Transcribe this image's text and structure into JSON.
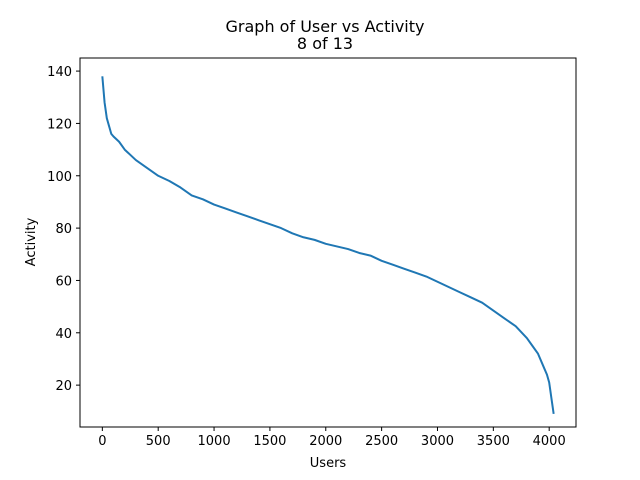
{
  "chart_data": {
    "type": "line",
    "title": "Graph of User vs Activity",
    "subtitle": "8 of 13",
    "xlabel": "Users",
    "ylabel": "Activity",
    "xlim": [
      -200,
      4240
    ],
    "ylim": [
      4,
      145
    ],
    "xticks": [
      0,
      500,
      1000,
      1500,
      2000,
      2500,
      3000,
      3500,
      4000
    ],
    "yticks": [
      20,
      40,
      60,
      80,
      100,
      120,
      140
    ],
    "grid": false,
    "legend": "none",
    "series": [
      {
        "color": "#1f77b4",
        "x": [
          0,
          10,
          20,
          40,
          60,
          80,
          100,
          150,
          200,
          250,
          300,
          400,
          500,
          600,
          700,
          800,
          900,
          1000,
          1100,
          1200,
          1300,
          1400,
          1500,
          1600,
          1700,
          1800,
          1900,
          2000,
          2100,
          2200,
          2300,
          2400,
          2500,
          2600,
          2700,
          2800,
          2900,
          3000,
          3100,
          3200,
          3300,
          3400,
          3500,
          3600,
          3700,
          3800,
          3850,
          3900,
          3950,
          3980,
          4000,
          4010,
          4020,
          4030,
          4040
        ],
        "y": [
          138,
          133,
          128,
          122,
          119,
          116,
          115,
          113,
          110,
          108,
          106,
          103,
          100,
          98,
          95.5,
          92.5,
          91,
          89,
          87.5,
          86,
          84.5,
          83,
          81.5,
          80,
          78,
          76.5,
          75.5,
          74,
          73,
          72,
          70.5,
          69.5,
          67.5,
          66,
          64.5,
          63,
          61.5,
          59.5,
          57.5,
          55.5,
          53.5,
          51.5,
          48.5,
          45.5,
          42.5,
          38,
          35,
          32,
          27,
          24,
          21,
          18,
          15,
          12,
          9
        ]
      }
    ]
  }
}
